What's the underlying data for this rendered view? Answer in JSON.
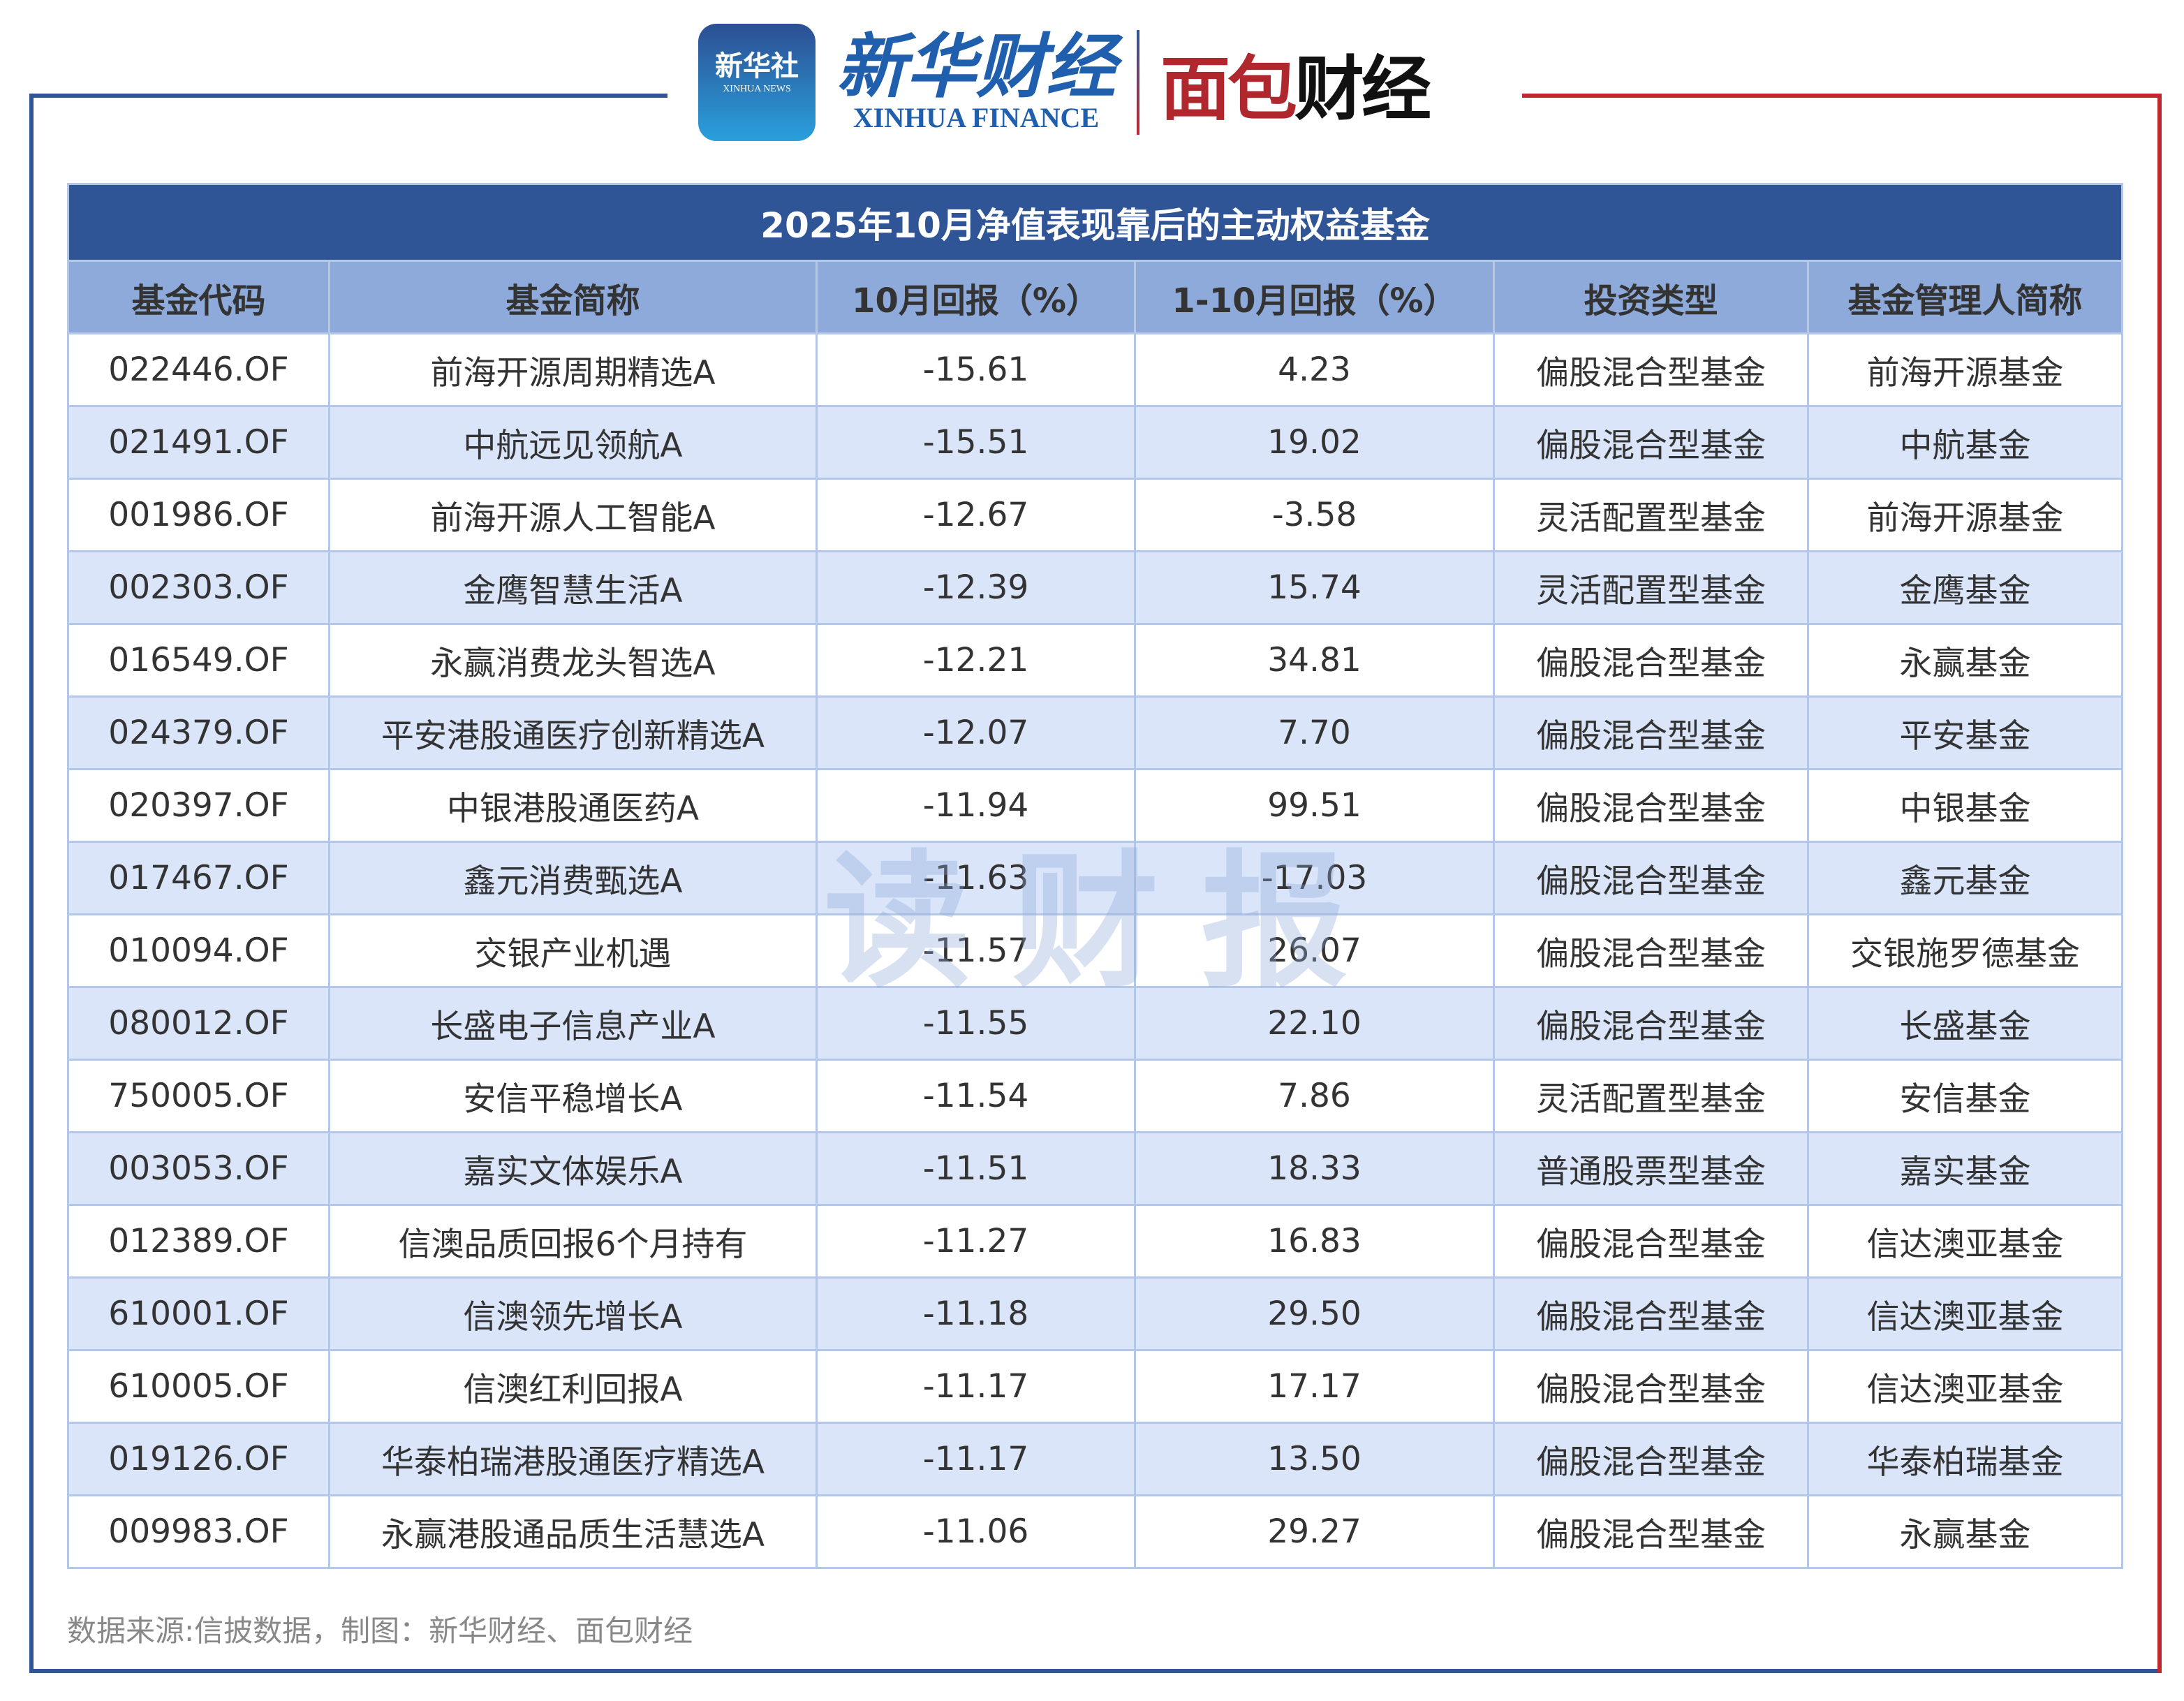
{
  "logos": {
    "xinhua_icon_cn": "新华社",
    "xinhua_icon_en": "XINHUA NEWS",
    "xinhua_finance_cn": "新华财经",
    "xinhua_finance_en": "XINHUA FINANCE",
    "mianbao_red": "面包",
    "mianbao_black": "财经"
  },
  "table": {
    "title": "2025年10月净值表现靠后的主动权益基金",
    "columns": [
      "基金代码",
      "基金简称",
      "10月回报（%）",
      "1-10月回报（%）",
      "投资类型",
      "基金管理人简称"
    ],
    "rows": [
      [
        "022446.OF",
        "前海开源周期精选A",
        "-15.61",
        "4.23",
        "偏股混合型基金",
        "前海开源基金"
      ],
      [
        "021491.OF",
        "中航远见领航A",
        "-15.51",
        "19.02",
        "偏股混合型基金",
        "中航基金"
      ],
      [
        "001986.OF",
        "前海开源人工智能A",
        "-12.67",
        "-3.58",
        "灵活配置型基金",
        "前海开源基金"
      ],
      [
        "002303.OF",
        "金鹰智慧生活A",
        "-12.39",
        "15.74",
        "灵活配置型基金",
        "金鹰基金"
      ],
      [
        "016549.OF",
        "永赢消费龙头智选A",
        "-12.21",
        "34.81",
        "偏股混合型基金",
        "永赢基金"
      ],
      [
        "024379.OF",
        "平安港股通医疗创新精选A",
        "-12.07",
        "7.70",
        "偏股混合型基金",
        "平安基金"
      ],
      [
        "020397.OF",
        "中银港股通医药A",
        "-11.94",
        "99.51",
        "偏股混合型基金",
        "中银基金"
      ],
      [
        "017467.OF",
        "鑫元消费甄选A",
        "-11.63",
        "-17.03",
        "偏股混合型基金",
        "鑫元基金"
      ],
      [
        "010094.OF",
        "交银产业机遇",
        "-11.57",
        "26.07",
        "偏股混合型基金",
        "交银施罗德基金"
      ],
      [
        "080012.OF",
        "长盛电子信息产业A",
        "-11.55",
        "22.10",
        "偏股混合型基金",
        "长盛基金"
      ],
      [
        "750005.OF",
        "安信平稳增长A",
        "-11.54",
        "7.86",
        "灵活配置型基金",
        "安信基金"
      ],
      [
        "003053.OF",
        "嘉实文体娱乐A",
        "-11.51",
        "18.33",
        "普通股票型基金",
        "嘉实基金"
      ],
      [
        "012389.OF",
        "信澳品质回报6个月持有",
        "-11.27",
        "16.83",
        "偏股混合型基金",
        "信达澳亚基金"
      ],
      [
        "610001.OF",
        "信澳领先增长A",
        "-11.18",
        "29.50",
        "偏股混合型基金",
        "信达澳亚基金"
      ],
      [
        "610005.OF",
        "信澳红利回报A",
        "-11.17",
        "17.17",
        "偏股混合型基金",
        "信达澳亚基金"
      ],
      [
        "019126.OF",
        "华泰柏瑞港股通医疗精选A",
        "-11.17",
        "13.50",
        "偏股混合型基金",
        "华泰柏瑞基金"
      ],
      [
        "009983.OF",
        "永赢港股通品质生活慧选A",
        "-11.06",
        "29.27",
        "偏股混合型基金",
        "永赢基金"
      ]
    ]
  },
  "watermark": "读财报",
  "source": "数据来源:信披数据，制图：新华财经、面包财经",
  "colors": {
    "title_bg": "#2f5597",
    "header_bg": "#8eaadb",
    "alt_row": "#dae5fa",
    "frame_blue": "#2f5597",
    "frame_red": "#c0282d"
  }
}
